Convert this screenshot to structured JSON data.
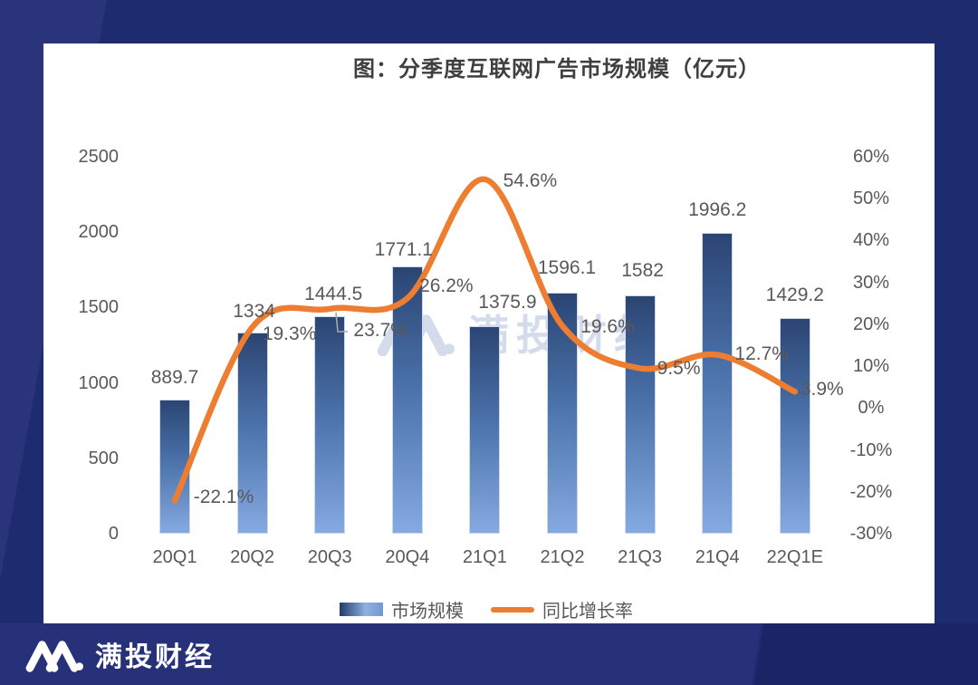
{
  "watermark": {
    "text": "满投财经"
  },
  "footer": {
    "brand": "满投财经"
  },
  "chart_data": {
    "type": "bar+line",
    "title": "图：分季度互联网广告市场规模（亿元）",
    "categories": [
      "20Q1",
      "20Q2",
      "20Q3",
      "20Q4",
      "21Q1",
      "21Q2",
      "21Q3",
      "21Q4",
      "22Q1E"
    ],
    "series": [
      {
        "name": "市场规模",
        "type": "bar",
        "axis": "left",
        "values": [
          889.7,
          1334,
          1444.5,
          1771.1,
          1375.9,
          1596.1,
          1582,
          1996.2,
          1429.2
        ],
        "labels": [
          "889.7",
          "1334",
          "1444.5",
          "1771.1",
          "1375.9",
          "1596.1",
          "1582",
          "1996.2",
          "1429.2"
        ]
      },
      {
        "name": "同比增长率",
        "type": "line",
        "axis": "right",
        "unit": "%",
        "values": [
          -22.1,
          19.3,
          23.7,
          26.2,
          54.6,
          19.6,
          9.5,
          12.7,
          3.9
        ],
        "labels": [
          "-22.1%",
          "19.3%",
          "23.7%",
          "26.2%",
          "54.6%",
          "19.6%",
          "9.5%",
          "12.7%",
          "3.9%"
        ]
      }
    ],
    "left_axis": {
      "min": 0,
      "max": 2500,
      "tick_step": 500,
      "ticks": [
        2500,
        2000,
        1500,
        1000,
        500,
        0
      ]
    },
    "right_axis": {
      "min": -30,
      "max": 60,
      "tick_step": 10,
      "ticks": [
        "60%",
        "50%",
        "40%",
        "30%",
        "20%",
        "10%",
        "0%",
        "-10%",
        "-20%",
        "-30%"
      ]
    },
    "legend": {
      "position": "bottom",
      "items": [
        {
          "label": "市场规模",
          "marker": "bar-gradient"
        },
        {
          "label": "同比增长率",
          "marker": "orange-line"
        }
      ]
    },
    "grid": false,
    "colors": {
      "bar_top": "#2b4573",
      "bar_bottom": "#85a9e1",
      "line": "#ED7D31",
      "label_text": "#595959",
      "title_text": "#3f3f3f",
      "frame_navy": "#1f2b6f"
    },
    "layout_hints": {
      "bar_label_dx": [
        0,
        2,
        4,
        -4,
        25,
        5,
        3,
        0,
        0
      ],
      "bar_label_dy": [
        -24,
        -23,
        -24,
        -18,
        -26,
        -27,
        -27,
        -25,
        -25
      ],
      "line_label_dx": [
        54,
        41,
        56,
        43,
        50,
        50,
        43,
        49,
        30
      ],
      "line_label_dy": [
        -3,
        8,
        24,
        -13,
        2,
        1,
        1,
        -1,
        -2
      ],
      "callout": {
        "series": 0,
        "index": 2,
        "points": [
          [
            323,
            297
          ],
          [
            325,
            318
          ],
          [
            336,
            318
          ]
        ]
      }
    }
  }
}
